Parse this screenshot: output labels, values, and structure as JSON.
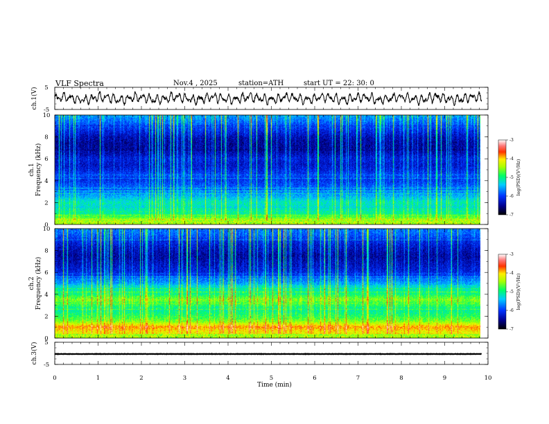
{
  "header": {
    "title": "VLF  Spectra",
    "date": "Nov.4  , 2025",
    "station": "station=ATH",
    "start": "start  UT  =   22: 30: 0"
  },
  "chart_data": {
    "type": "heatmap",
    "title": "VLF  Spectra",
    "xlabel": "Time  (min)",
    "xlim": [
      0,
      10
    ],
    "x_ticks": [
      "0",
      "1",
      "2",
      "3",
      "4",
      "5",
      "6",
      "7",
      "8",
      "9",
      "10"
    ],
    "data_end_min": 9.85,
    "panels": [
      {
        "id": "ch1-wave",
        "type": "line",
        "ylabel": "ch.1(V)",
        "ylim": [
          -5,
          5
        ],
        "y_ticks": [
          "5",
          "-5"
        ],
        "description_values": {
          "mean": 0,
          "amplitude": 2.3
        }
      },
      {
        "id": "ch1-spectrogram",
        "type": "heatmap",
        "ylabel_line1": "ch.1",
        "ylabel_line2": "Frequency  (kHz)",
        "ylim": [
          0,
          10
        ],
        "y_ticks": [
          "0",
          "2",
          "4",
          "6",
          "8",
          "10"
        ],
        "zlim": [
          -7,
          -3
        ],
        "colorbar_ticks": [
          "-3",
          "-4",
          "-5",
          "-6",
          "-7"
        ],
        "colorbar_label": "log(PSD)(V²/Hz)",
        "band_profile_khz": [
          0,
          0.5,
          1,
          1.5,
          2,
          2.5,
          3,
          3.5,
          4,
          4.5,
          5,
          5.5,
          6,
          6.5,
          7,
          7.5,
          8,
          8.5,
          9,
          9.5,
          10
        ],
        "band_profile_log_psd": [
          -4.3,
          -4.6,
          -5.1,
          -5.3,
          -5.2,
          -5.5,
          -5.8,
          -5.9,
          -6.1,
          -6.0,
          -6.2,
          -6.3,
          -6.2,
          -6.4,
          -6.5,
          -6.5,
          -6.4,
          -6.2,
          -6.0,
          -5.8,
          -5.6
        ]
      },
      {
        "id": "ch2-spectrogram",
        "type": "heatmap",
        "ylabel_line1": "ch.2",
        "ylabel_line2": "Frequency  (kHz)",
        "ylim": [
          0,
          10
        ],
        "y_ticks": [
          "0",
          "2",
          "4",
          "6",
          "8",
          "10"
        ],
        "zlim": [
          -7,
          -3
        ],
        "colorbar_ticks": [
          "-3",
          "-4",
          "-5",
          "-6",
          "-7"
        ],
        "colorbar_label": "log(PSD)(V²/Hz)",
        "band_profile_khz": [
          0,
          0.5,
          1,
          1.5,
          2,
          2.5,
          3,
          3.5,
          4,
          4.5,
          5,
          5.5,
          6,
          6.5,
          7,
          7.5,
          8,
          8.5,
          9,
          9.5,
          10
        ],
        "band_profile_log_psd": [
          -4.0,
          -4.2,
          -3.9,
          -4.6,
          -4.9,
          -5.1,
          -4.9,
          -4.6,
          -5.0,
          -5.2,
          -5.6,
          -5.9,
          -6.2,
          -6.3,
          -6.4,
          -6.5,
          -6.4,
          -6.3,
          -6.1,
          -5.9,
          -5.8
        ]
      },
      {
        "id": "ch3-wave",
        "type": "line",
        "ylabel": "ch.3(V)",
        "ylim": [
          -5,
          5
        ],
        "y_ticks": [
          "5",
          "-5"
        ],
        "description_values": {
          "mean": -0.3,
          "amplitude": 0.15
        }
      }
    ]
  }
}
